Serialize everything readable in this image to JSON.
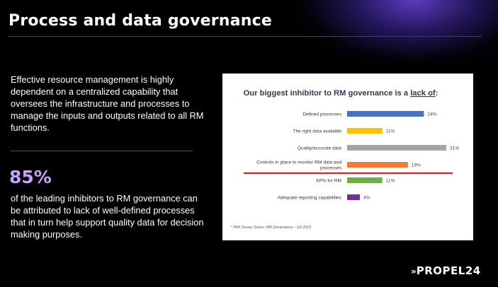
{
  "page": {
    "title": "Process and data governance",
    "intro": "Effective resource management is highly dependent on a centralized capability that oversees the infrastructure and processes to manage the inputs and outputs related to all RM functions.",
    "stat_value": "85%",
    "stat_text": "of the leading inhibitors to RM governance can be attributed to lack of well-defined processes that in turn help support quality data for decision making purposes.",
    "logo_mark": "»",
    "logo_text": "PROPEL24"
  },
  "chart_data": {
    "type": "bar",
    "orientation": "horizontal",
    "title": "Our biggest inhibitor to RM governance is a ",
    "title_emphasis": "lack of",
    "title_suffix": ":",
    "categories": [
      [
        "Defined processes"
      ],
      [
        "The right data available"
      ],
      [
        "Quality/accurate data"
      ],
      [
        "Controls in place to monitor RM data and",
        "processes"
      ],
      [
        "KPIs for RM"
      ],
      [
        "Adequate reporting capabilities"
      ]
    ],
    "values": [
      24,
      11,
      31,
      19,
      11,
      4
    ],
    "value_labels": [
      "24%",
      "11%",
      "31%",
      "19%",
      "11%",
      "4%"
    ],
    "colors": [
      "#4472c4",
      "#ffc000",
      "#a5a5a5",
      "#ed7d31",
      "#70ad47",
      "#7030a0"
    ],
    "xlim": [
      0,
      31
    ],
    "highlight_after_index": 3,
    "highlight_color": "#e02020",
    "footnote": "* RMI Survey Series: RM Governance – Q3 2023"
  }
}
